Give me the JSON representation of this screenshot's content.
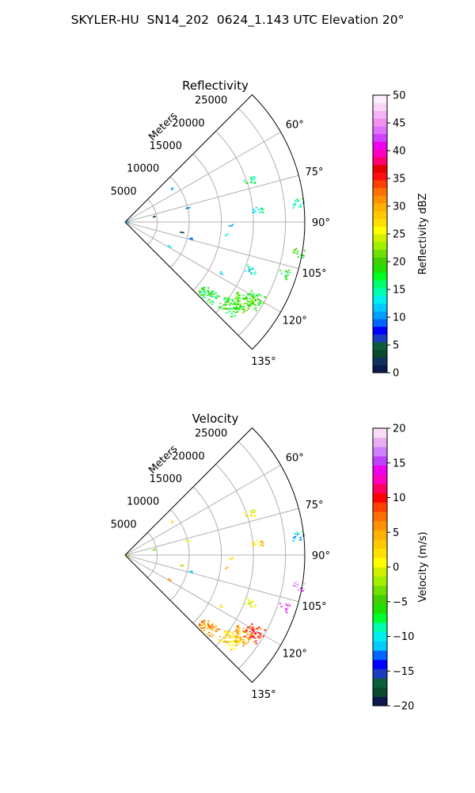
{
  "figure": {
    "title": "SKYLER-HU  SN14_202  0624_1.143 UTC Elevation 20°"
  },
  "chart_data": [
    {
      "type": "polar-sector",
      "title": "Reflectivity",
      "range_label": "Meters",
      "rlim": [
        0,
        28000
      ],
      "range_ticks": [
        5000,
        10000,
        15000,
        20000,
        25000
      ],
      "range_tick_labels": [
        "5000",
        "10000",
        "15000",
        "20000",
        "25000"
      ],
      "theta_range_deg": [
        45,
        135
      ],
      "theta_ticks_deg": [
        60,
        75,
        90,
        105,
        120,
        135
      ],
      "theta_tick_labels": [
        "60°",
        "75°",
        "90°",
        "105°",
        "120°",
        "135°"
      ],
      "grid": true,
      "colorbar": {
        "label": "Reflectivity dBZ",
        "min": 0,
        "max": 50,
        "ticks": [
          0,
          5,
          10,
          15,
          20,
          25,
          30,
          35,
          40,
          45,
          50
        ],
        "tick_labels": [
          "0",
          "5",
          "10",
          "15",
          "20",
          "25",
          "30",
          "35",
          "40",
          "45",
          "50"
        ]
      },
      "echoes": [
        {
          "az": 121,
          "r": 23500,
          "value": 19
        },
        {
          "az": 125,
          "r": 22000,
          "value": 20
        },
        {
          "az": 129,
          "r": 21000,
          "value": 19
        },
        {
          "az": 131,
          "r": 17200,
          "value": 18
        },
        {
          "az": 100,
          "r": 27500,
          "value": 18
        },
        {
          "az": 108,
          "r": 26000,
          "value": 17
        },
        {
          "az": 84,
          "r": 27200,
          "value": 16
        },
        {
          "az": 72,
          "r": 20500,
          "value": 16
        },
        {
          "az": 85,
          "r": 20800,
          "value": 14
        },
        {
          "az": 97,
          "r": 16000,
          "value": 13
        },
        {
          "az": 55,
          "r": 9000,
          "value": 11
        },
        {
          "az": 80,
          "r": 4800,
          "value": 3
        },
        {
          "az": 77,
          "r": 10000,
          "value": 9
        },
        {
          "az": 100,
          "r": 9000,
          "value": 4
        },
        {
          "az": 104,
          "r": 10500,
          "value": 9
        },
        {
          "az": 119,
          "r": 8000,
          "value": 13
        },
        {
          "az": 118,
          "r": 17000,
          "value": 12
        },
        {
          "az": 111,
          "r": 21000,
          "value": 14
        },
        {
          "az": 92,
          "r": 16500,
          "value": 11
        },
        {
          "az": 90,
          "r": 500,
          "value": 10
        }
      ]
    },
    {
      "type": "polar-sector",
      "title": "Velocity",
      "range_label": "Meters",
      "rlim": [
        0,
        28000
      ],
      "range_ticks": [
        5000,
        10000,
        15000,
        20000,
        25000
      ],
      "range_tick_labels": [
        "5000",
        "10000",
        "15000",
        "20000",
        "25000"
      ],
      "theta_range_deg": [
        45,
        135
      ],
      "theta_ticks_deg": [
        60,
        75,
        90,
        105,
        120,
        135
      ],
      "theta_tick_labels": [
        "60°",
        "75°",
        "90°",
        "105°",
        "120°",
        "135°"
      ],
      "grid": true,
      "colorbar": {
        "label": "Velocity (m/s)",
        "min": -20,
        "max": 20,
        "ticks": [
          -20,
          -15,
          -10,
          -5,
          0,
          5,
          10,
          15,
          20
        ],
        "tick_labels": [
          "−20",
          "−15",
          "−10",
          "−5",
          "0",
          "5",
          "10",
          "15",
          "20"
        ]
      },
      "echoes": [
        {
          "az": 121,
          "r": 23500,
          "value": 9
        },
        {
          "az": 125,
          "r": 22000,
          "value": 5
        },
        {
          "az": 129,
          "r": 21000,
          "value": 3
        },
        {
          "az": 131,
          "r": 17200,
          "value": 6
        },
        {
          "az": 100,
          "r": 27500,
          "value": 16
        },
        {
          "az": 108,
          "r": 26000,
          "value": 15
        },
        {
          "az": 84,
          "r": 27200,
          "value": -10
        },
        {
          "az": 72,
          "r": 20500,
          "value": 1
        },
        {
          "az": 85,
          "r": 20800,
          "value": 3
        },
        {
          "az": 97,
          "r": 16000,
          "value": 4
        },
        {
          "az": 55,
          "r": 9000,
          "value": 2
        },
        {
          "az": 80,
          "r": 4800,
          "value": -3
        },
        {
          "az": 77,
          "r": 10000,
          "value": 1
        },
        {
          "az": 100,
          "r": 9000,
          "value": -2
        },
        {
          "az": 104,
          "r": 10500,
          "value": -12
        },
        {
          "az": 119,
          "r": 8000,
          "value": 6
        },
        {
          "az": 118,
          "r": 17000,
          "value": 2
        },
        {
          "az": 111,
          "r": 21000,
          "value": 1
        },
        {
          "az": 92,
          "r": 16500,
          "value": 2
        },
        {
          "az": 90,
          "r": 500,
          "value": 4
        }
      ]
    }
  ]
}
